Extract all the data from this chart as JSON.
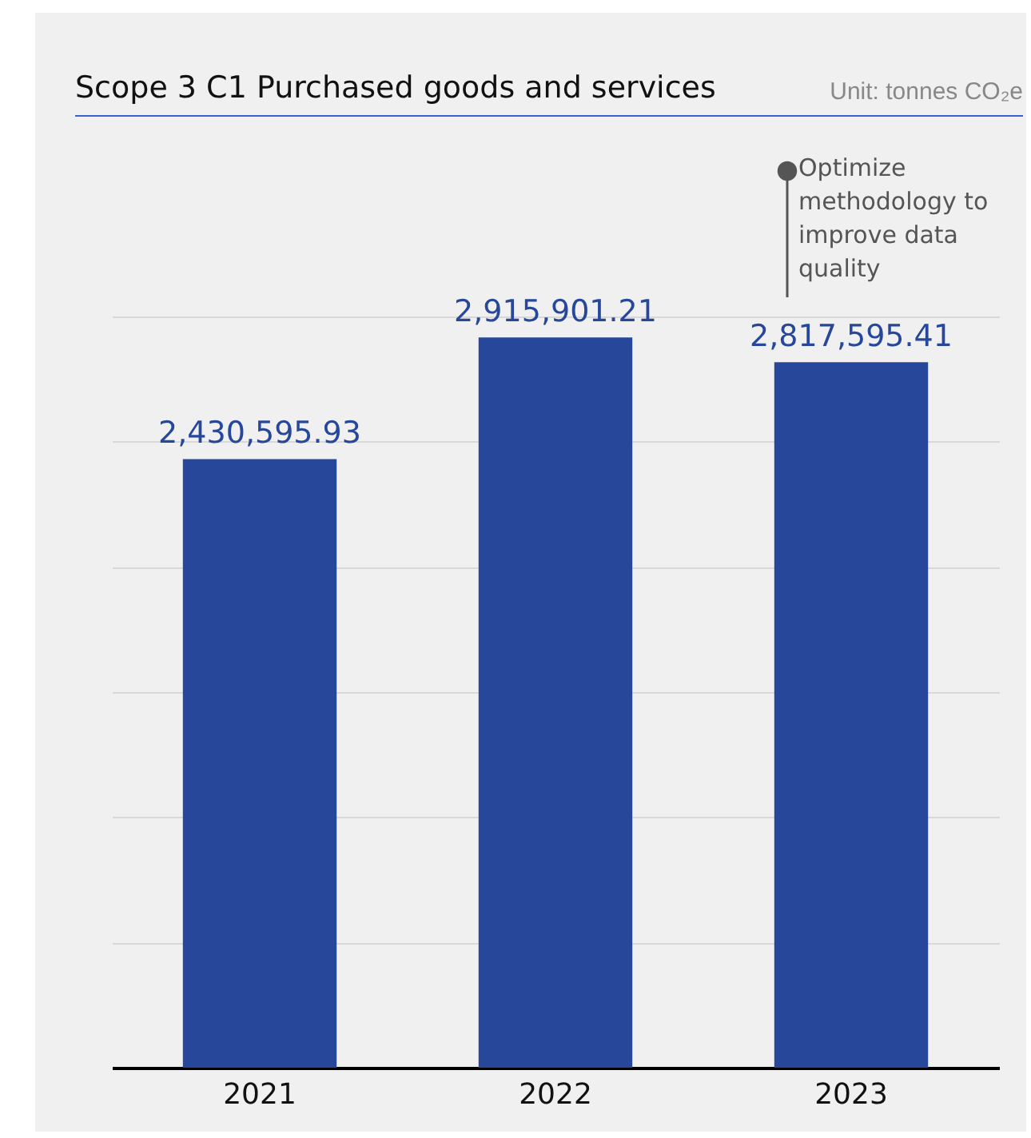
{
  "chart_data": {
    "type": "bar",
    "title": "Scope 3 C1 Purchased goods and services",
    "subtitle": "Unit: tonnes CO₂e",
    "categories": [
      "2021",
      "2022",
      "2023"
    ],
    "values": [
      2430595.93,
      2915901.21,
      2817595.41
    ],
    "value_labels": [
      "2,430,595.93",
      "2,915,901.21",
      "2,817,595.41"
    ],
    "color": "#27479a",
    "grid": "y",
    "tick_labels": "x",
    "annotations": [
      "Optimize\nmethodology to\nimprove data\nquality"
    ]
  }
}
